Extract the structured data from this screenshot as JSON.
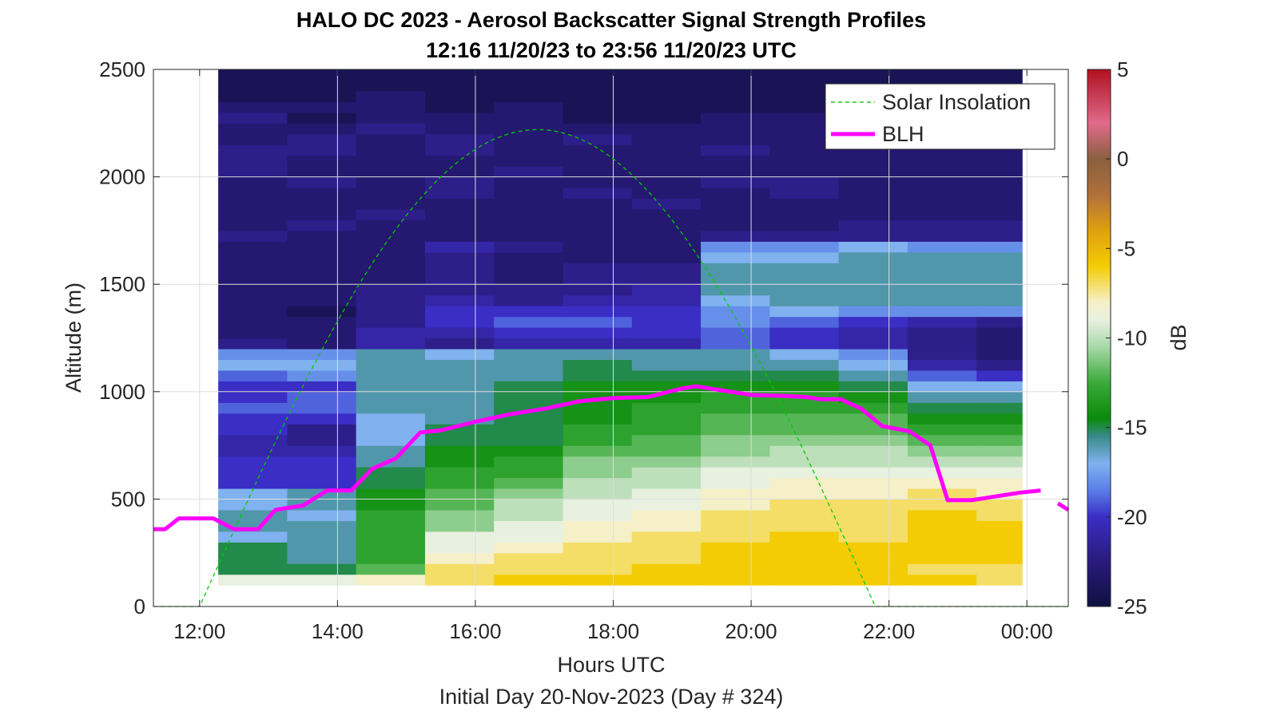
{
  "chart_data": {
    "type": "heatmap",
    "title_line1": "HALO DC 2023 - Aerosol Backscatter Signal Strength Profiles",
    "title_line2": "12:16 11/20/23 to 23:56 11/20/23  UTC",
    "xlabel": "Hours UTC",
    "ylabel": "Altitude (m)",
    "footer": "Initial Day 20-Nov-2023 (Day # 324)",
    "xlim": [
      11.33,
      24.6
    ],
    "ylim": [
      0,
      2500
    ],
    "x_ticks": [
      12,
      14,
      16,
      18,
      20,
      22,
      24
    ],
    "x_tick_labels": [
      "12:00",
      "14:00",
      "16:00",
      "18:00",
      "20:00",
      "22:00",
      "00:00"
    ],
    "y_ticks": [
      0,
      500,
      1000,
      1500,
      2000,
      2500
    ],
    "y_tick_labels": [
      "0",
      "500",
      "1000",
      "1500",
      "2000",
      "2500"
    ],
    "colorbar": {
      "label": "dB",
      "range": [
        -25,
        5
      ],
      "ticks": [
        5,
        0,
        -5,
        -10,
        -15,
        -20,
        -25
      ],
      "tick_labels": [
        "5",
        "0",
        "-5",
        "-10",
        "-15",
        "-20",
        "-25"
      ]
    },
    "legend": {
      "placement": "top-right",
      "entries": [
        "Solar Insolation",
        "BLH"
      ]
    },
    "grid": true,
    "data_extent": {
      "x": [
        12.27,
        23.93
      ],
      "altitude": [
        100,
        2500
      ]
    },
    "series": [
      {
        "name": "BLH",
        "color": "#ff00ff",
        "points": [
          [
            11.3,
            360
          ],
          [
            11.5,
            360
          ],
          [
            11.7,
            410
          ],
          [
            12.0,
            410
          ],
          [
            12.2,
            410
          ],
          [
            12.5,
            360
          ],
          [
            12.85,
            360
          ],
          [
            13.1,
            450
          ],
          [
            13.5,
            470
          ],
          [
            13.85,
            540
          ],
          [
            14.2,
            540
          ],
          [
            14.5,
            640
          ],
          [
            14.85,
            690
          ],
          [
            15.2,
            810
          ],
          [
            15.5,
            820
          ],
          [
            16.0,
            860
          ],
          [
            16.5,
            895
          ],
          [
            17.0,
            920
          ],
          [
            17.5,
            955
          ],
          [
            18.0,
            970
          ],
          [
            18.5,
            975
          ],
          [
            19.0,
            1015
          ],
          [
            19.2,
            1025
          ],
          [
            19.5,
            1010
          ],
          [
            20.0,
            985
          ],
          [
            20.5,
            980
          ],
          [
            20.8,
            975
          ],
          [
            21.0,
            965
          ],
          [
            21.3,
            965
          ],
          [
            21.6,
            920
          ],
          [
            21.9,
            840
          ],
          [
            22.3,
            815
          ],
          [
            22.6,
            750
          ],
          [
            22.85,
            495
          ],
          [
            23.2,
            495
          ],
          [
            23.5,
            510
          ],
          [
            23.9,
            530
          ],
          [
            24.2,
            540
          ]
        ],
        "extra_segment": [
          [
            24.45,
            480
          ],
          [
            24.6,
            450
          ]
        ]
      },
      {
        "name": "Solar Insolation",
        "color": "#00cc00",
        "style": "dashed",
        "sunrise": 12.0,
        "sunset": 21.8,
        "peak_altitude_equiv": 2220
      }
    ],
    "columns_x": [
      12.27,
      13.27,
      14.27,
      15.27,
      16.27,
      17.27,
      18.27,
      19.27,
      20.27,
      21.27,
      22.27,
      23.27
    ],
    "levels": [
      100,
      150,
      200,
      250,
      300,
      350,
      400,
      450,
      500,
      550,
      600,
      650,
      700,
      750,
      800,
      850,
      900,
      950,
      1000,
      1050,
      1100,
      1150,
      1200,
      1250,
      1300,
      1350,
      1400,
      1450,
      1500,
      1550,
      1600,
      1650,
      1700,
      1750,
      1800,
      1850,
      1900,
      1950,
      2000,
      2050,
      2100,
      2150,
      2200,
      2250,
      2300,
      2350,
      2400,
      2450
    ],
    "profiles_db": [
      [
        -9,
        -15,
        -15,
        -15,
        -17,
        -16,
        -16,
        -17,
        -17,
        -20,
        -20,
        -20,
        -21,
        -21,
        -20,
        -20,
        -19,
        -20,
        -20,
        -19,
        -17,
        -18,
        -22,
        -23,
        -23,
        -23,
        -23,
        -23,
        -23,
        -23,
        -23,
        -23,
        -22,
        -23,
        -23,
        -23,
        -23,
        -23,
        -22,
        -22,
        -22,
        -23,
        -23,
        -22,
        -23,
        -24,
        -24,
        -24
      ],
      [
        -9,
        -15,
        -16,
        -16,
        -16,
        -16,
        -17,
        -16,
        -16,
        -20,
        -20,
        -20,
        -21,
        -22,
        -22,
        -20,
        -19,
        -19,
        -20,
        -18,
        -17,
        -18,
        -23,
        -23,
        -23,
        -24,
        -23,
        -23,
        -23,
        -23,
        -23,
        -23,
        -23,
        -22,
        -23,
        -23,
        -23,
        -22,
        -23,
        -23,
        -22,
        -22,
        -23,
        -24,
        -23,
        -24,
        -24,
        -24
      ],
      [
        -8,
        -12,
        -13,
        -13,
        -13,
        -13,
        -13,
        -14,
        -14,
        -15,
        -15,
        -16,
        -16,
        -17,
        -17,
        -17,
        -16,
        -16,
        -16,
        -16,
        -16,
        -16,
        -21,
        -21,
        -22,
        -22,
        -22,
        -22,
        -23,
        -23,
        -23,
        -23,
        -23,
        -23,
        -22,
        -23,
        -23,
        -23,
        -23,
        -23,
        -23,
        -23,
        -22,
        -23,
        -23,
        -23,
        -24,
        -24
      ],
      [
        -7,
        -7,
        -8,
        -9,
        -9,
        -11,
        -11,
        -12,
        -12,
        -13,
        -13,
        -14,
        -14,
        -15,
        -15,
        -16,
        -16,
        -16,
        -16,
        -16,
        -16,
        -17,
        -22,
        -21,
        -20,
        -20,
        -21,
        -22,
        -22,
        -22,
        -22,
        -21,
        -23,
        -23,
        -23,
        -23,
        -22,
        -22,
        -23,
        -23,
        -22,
        -22,
        -23,
        -23,
        -24,
        -24,
        -24,
        -24
      ],
      [
        -6,
        -7,
        -7,
        -8,
        -9,
        -9,
        -10,
        -10,
        -11,
        -12,
        -13,
        -13,
        -14,
        -15,
        -15,
        -15,
        -15,
        -15,
        -15,
        -16,
        -16,
        -16,
        -21,
        -20,
        -19,
        -20,
        -22,
        -22,
        -23,
        -23,
        -23,
        -22,
        -23,
        -23,
        -23,
        -23,
        -23,
        -23,
        -22,
        -23,
        -23,
        -23,
        -23,
        -23,
        -23,
        -24,
        -24,
        -24
      ],
      [
        -6,
        -7,
        -7,
        -7,
        -8,
        -8,
        -9,
        -9,
        -10,
        -10,
        -11,
        -11,
        -12,
        -13,
        -13,
        -14,
        -14,
        -14,
        -14,
        -15,
        -15,
        -16,
        -21,
        -20,
        -19,
        -20,
        -21,
        -22,
        -22,
        -22,
        -23,
        -23,
        -23,
        -23,
        -23,
        -23,
        -22,
        -23,
        -23,
        -23,
        -23,
        -22,
        -23,
        -24,
        -24,
        -24,
        -24,
        -24
      ],
      [
        -6,
        -6,
        -7,
        -7,
        -7,
        -8,
        -8,
        -9,
        -9,
        -10,
        -10,
        -11,
        -12,
        -12,
        -13,
        -13,
        -13,
        -14,
        -14,
        -15,
        -16,
        -16,
        -21,
        -20,
        -20,
        -20,
        -21,
        -21,
        -22,
        -22,
        -23,
        -23,
        -23,
        -23,
        -23,
        -22,
        -23,
        -23,
        -23,
        -23,
        -23,
        -23,
        -23,
        -24,
        -24,
        -24,
        -24,
        -24
      ],
      [
        -6,
        -6,
        -6,
        -6,
        -7,
        -7,
        -7,
        -8,
        -8,
        -9,
        -9,
        -10,
        -11,
        -11,
        -12,
        -12,
        -13,
        -13,
        -14,
        -15,
        -16,
        -16,
        -19,
        -19,
        -18,
        -18,
        -17,
        -16,
        -16,
        -16,
        -17,
        -18,
        -22,
        -23,
        -23,
        -23,
        -23,
        -22,
        -23,
        -23,
        -22,
        -23,
        -23,
        -23,
        -24,
        -24,
        -24,
        -24
      ],
      [
        -6,
        -6,
        -6,
        -6,
        -6,
        -7,
        -7,
        -7,
        -8,
        -8,
        -9,
        -10,
        -10,
        -11,
        -12,
        -12,
        -13,
        -13,
        -14,
        -15,
        -16,
        -17,
        -20,
        -20,
        -19,
        -17,
        -16,
        -16,
        -16,
        -16,
        -17,
        -18,
        -22,
        -23,
        -23,
        -23,
        -22,
        -22,
        -23,
        -23,
        -23,
        -23,
        -23,
        -23,
        -24,
        -24,
        -24,
        -24
      ],
      [
        -6,
        -6,
        -6,
        -6,
        -7,
        -7,
        -7,
        -7,
        -8,
        -8,
        -9,
        -10,
        -10,
        -11,
        -12,
        -12,
        -13,
        -14,
        -15,
        -16,
        -17,
        -18,
        -21,
        -21,
        -20,
        -18,
        -16,
        -16,
        -16,
        -16,
        -16,
        -17,
        -22,
        -22,
        -23,
        -23,
        -23,
        -23,
        -23,
        -23,
        -23,
        -23,
        -23,
        -24,
        -24,
        -24,
        -24,
        -24
      ],
      [
        -6,
        -7,
        -6,
        -6,
        -6,
        -6,
        -6,
        -7,
        -7,
        -8,
        -9,
        -10,
        -11,
        -12,
        -13,
        -14,
        -15,
        -16,
        -17,
        -19,
        -21,
        -22,
        -22,
        -22,
        -21,
        -18,
        -16,
        -16,
        -16,
        -16,
        -16,
        -18,
        -22,
        -22,
        -23,
        -23,
        -23,
        -23,
        -23,
        -23,
        -23,
        -23,
        -23,
        -24,
        -24,
        -24,
        -24,
        -24
      ],
      [
        -7,
        -7,
        -6,
        -6,
        -6,
        -6,
        -7,
        -7,
        -8,
        -8,
        -9,
        -10,
        -11,
        -12,
        -13,
        -14,
        -15,
        -16,
        -17,
        -20,
        -22,
        -23,
        -23,
        -23,
        -22,
        -18,
        -16,
        -16,
        -16,
        -16,
        -16,
        -18,
        -22,
        -22,
        -23,
        -23,
        -23,
        -23,
        -23,
        -23,
        -23,
        -23,
        -23,
        -24,
        -24,
        -24,
        -24,
        -24
      ]
    ]
  }
}
